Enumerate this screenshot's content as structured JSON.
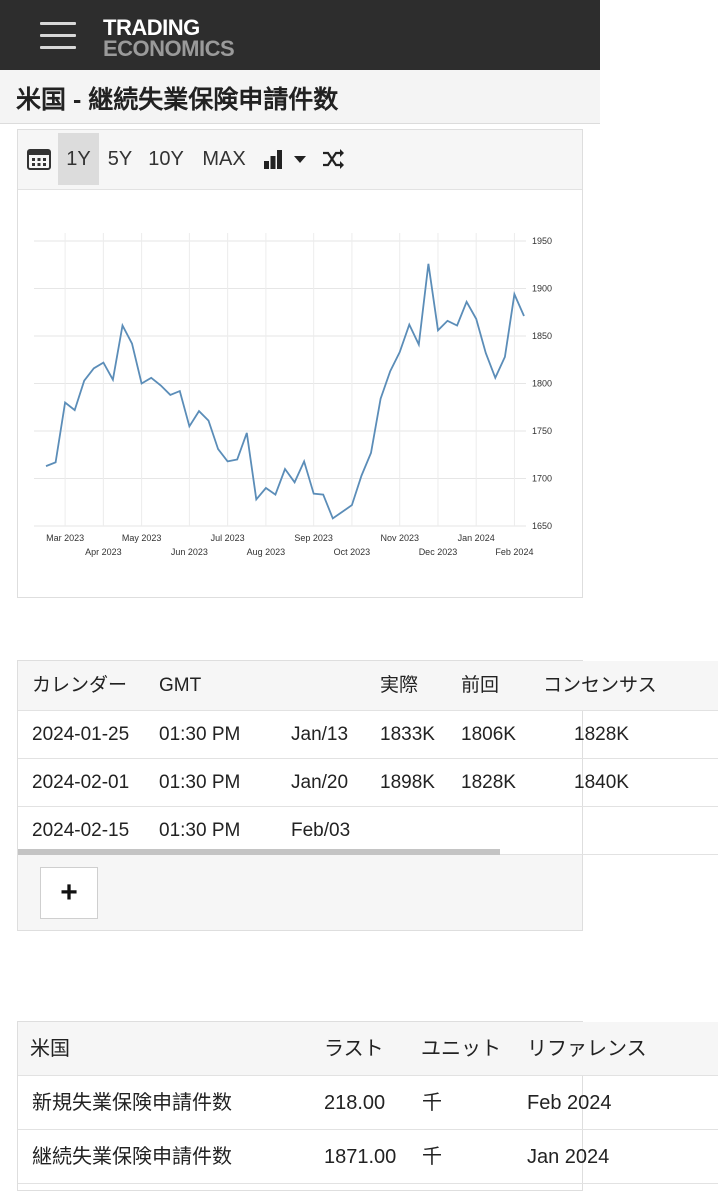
{
  "header": {
    "logo_line1": "TRADING",
    "logo_line2": "ECONOMICS",
    "bg_color": "#2d2d2d"
  },
  "page_title": "米国 - 継続失業保険申請件数",
  "toolbar": {
    "calendar_icon": "calendar-icon",
    "ranges": [
      "1Y",
      "5Y",
      "10Y",
      "MAX"
    ],
    "active_range": "1Y",
    "chart_type_icon": "bar-chart-icon",
    "dropdown_icon": "caret-down-icon",
    "shuffle_icon": "shuffle-icon"
  },
  "chart_data": {
    "type": "line",
    "color": "#5b8db8",
    "ylim": [
      1650,
      1950
    ],
    "yticks": [
      1650,
      1700,
      1750,
      1800,
      1850,
      1900,
      1950
    ],
    "grid": true,
    "x_labels_top": [
      "Mar 2023",
      "May 2023",
      "Jul 2023",
      "Sep 2023",
      "Nov 2023",
      "Jan 2024"
    ],
    "x_labels_bottom": [
      "Apr 2023",
      "Jun 2023",
      "Aug 2023",
      "Oct 2023",
      "Dec 2023",
      "Feb 2024"
    ],
    "x_label_weeks_top": [
      2,
      10,
      19,
      28,
      37,
      45
    ],
    "x_label_weeks_bottom": [
      6,
      15,
      23,
      32,
      41,
      49
    ],
    "x_label_week_max": 50,
    "values": [
      1713,
      1717,
      1780,
      1772,
      1803,
      1816,
      1822,
      1804,
      1861,
      1842,
      1800,
      1806,
      1798,
      1788,
      1792,
      1755,
      1771,
      1761,
      1731,
      1718,
      1720,
      1748,
      1678,
      1690,
      1683,
      1710,
      1696,
      1718,
      1684,
      1683,
      1658,
      1665,
      1672,
      1703,
      1727,
      1784,
      1813,
      1833,
      1862,
      1841,
      1926,
      1856,
      1866,
      1861,
      1886,
      1868,
      1832,
      1806,
      1828,
      1894,
      1871
    ]
  },
  "calendar": {
    "headers": [
      "カレンダー",
      "GMT",
      "",
      "実際",
      "前回",
      "コンセンサス"
    ],
    "rows": [
      [
        "2024-01-25",
        "01:30 PM",
        "Jan/13",
        "1833K",
        "1806K",
        "1828K"
      ],
      [
        "2024-02-01",
        "01:30 PM",
        "Jan/20",
        "1898K",
        "1828K",
        "1840K"
      ],
      [
        "2024-02-15",
        "01:30 PM",
        "Feb/03",
        "",
        "",
        ""
      ]
    ],
    "add_label": "+"
  },
  "related": {
    "headers": [
      "米国",
      "ラスト",
      "ユニット",
      "リファレンス"
    ],
    "rows": [
      [
        "新規失業保険申請件数",
        "218.00",
        "千",
        "Feb 2024"
      ],
      [
        "継続失業保険申請件数",
        "1871.00",
        "千",
        "Jan 2024"
      ]
    ]
  }
}
